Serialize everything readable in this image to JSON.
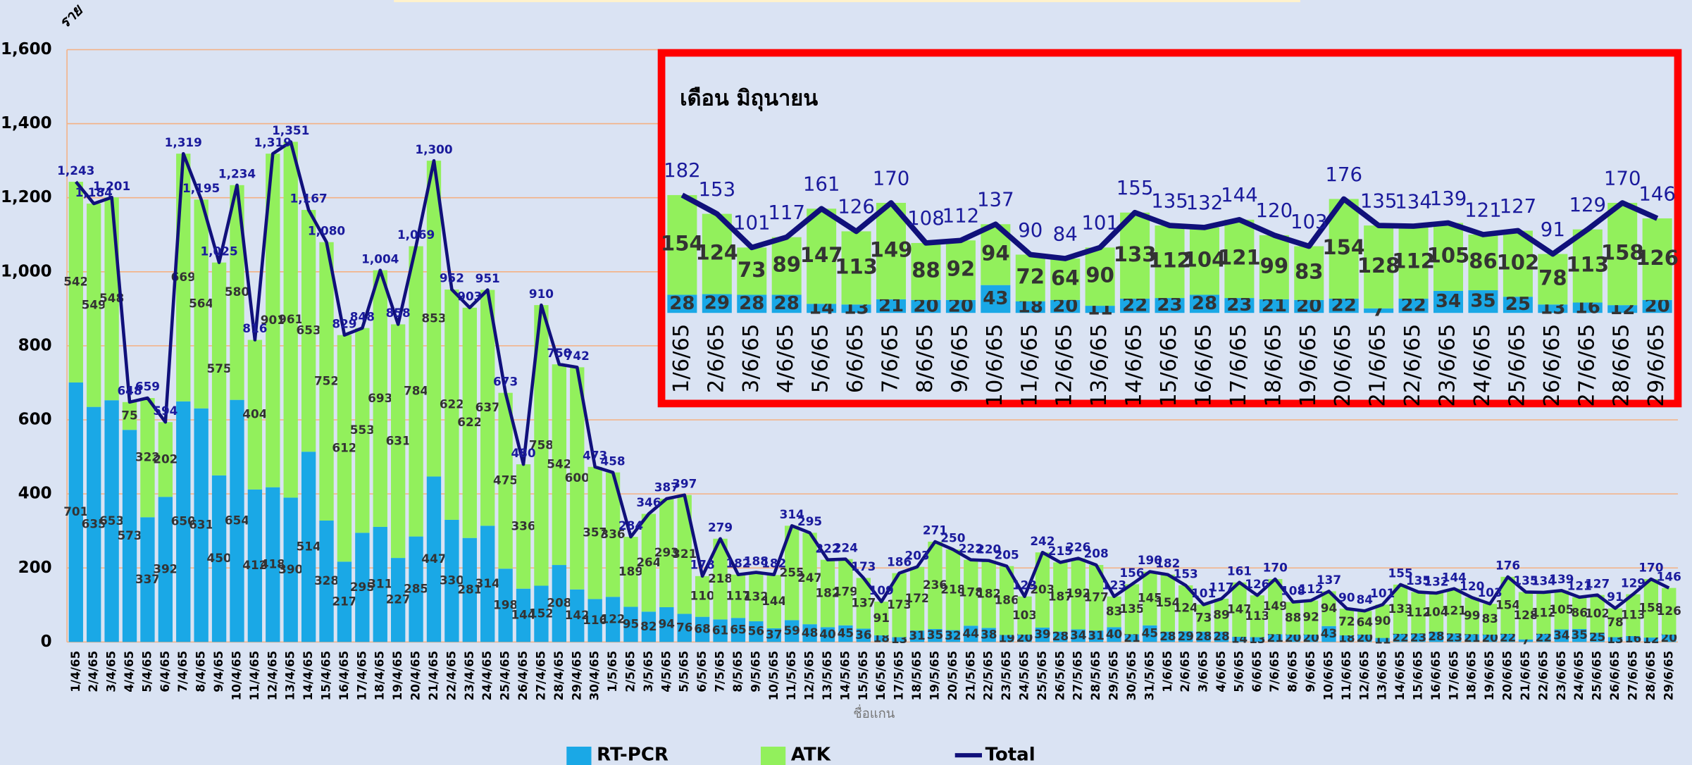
{
  "chart_data": [
    {
      "type": "bar",
      "stacked": true,
      "y_axis_label": "ราย",
      "x_axis_label": "ชื่อแกน",
      "categories": [
        "1/4/65",
        "2/4/65",
        "3/4/65",
        "4/4/65",
        "5/4/65",
        "6/4/65",
        "7/4/65",
        "8/4/65",
        "9/4/65",
        "10/4/65",
        "11/4/65",
        "12/4/65",
        "13/4/65",
        "14/4/65",
        "15/4/65",
        "16/4/65",
        "17/4/65",
        "18/4/65",
        "19/4/65",
        "20/4/65",
        "21/4/65",
        "22/4/65",
        "23/4/65",
        "24/4/65",
        "25/4/65",
        "26/4/65",
        "27/4/65",
        "28/4/65",
        "29/4/65",
        "30/4/65",
        "1/5/65",
        "2/5/65",
        "3/5/65",
        "4/5/65",
        "5/5/65",
        "6/5/65",
        "7/5/65",
        "8/5/65",
        "9/5/65",
        "10/5/65",
        "11/5/65",
        "12/5/65",
        "13/5/65",
        "14/5/65",
        "15/5/65",
        "16/5/65",
        "17/5/65",
        "18/5/65",
        "19/5/65",
        "20/5/65",
        "21/5/65",
        "22/5/65",
        "23/5/65",
        "24/5/65",
        "25/5/65",
        "26/5/65",
        "27/5/65",
        "28/5/65",
        "29/5/65",
        "30/5/65",
        "31/5/65",
        "1/6/65",
        "2/6/65",
        "3/6/65",
        "4/6/65",
        "5/6/65",
        "6/6/65",
        "7/6/65",
        "8/6/65",
        "9/6/65",
        "10/6/65",
        "11/6/65",
        "12/6/65",
        "13/6/65",
        "14/6/65",
        "15/6/65",
        "16/6/65",
        "17/6/65",
        "18/6/65",
        "19/6/65",
        "20/6/65",
        "21/6/65",
        "22/6/65",
        "23/6/65",
        "24/6/65",
        "25/6/65",
        "26/6/65",
        "27/6/65",
        "28/6/65",
        "29/6/65"
      ],
      "series": [
        {
          "name": "RT-PCR",
          "color": "#1aa8e6",
          "values": [
            701,
            635,
            653,
            573,
            337,
            392,
            650,
            631,
            450,
            654,
            412,
            418,
            390,
            514,
            328,
            217,
            295,
            311,
            227,
            285,
            447,
            330,
            281,
            314,
            198,
            144,
            152,
            208,
            142,
            116,
            122,
            95,
            82,
            94,
            76,
            68,
            61,
            65,
            56,
            37,
            59,
            48,
            40,
            45,
            36,
            18,
            13,
            31,
            35,
            32,
            44,
            38,
            19,
            20,
            39,
            28,
            34,
            31,
            40,
            21,
            45,
            28,
            29,
            28,
            28,
            14,
            13,
            21,
            20,
            20,
            43,
            18,
            20,
            11,
            22,
            23,
            28,
            23,
            21,
            20,
            22,
            7,
            22,
            34,
            35,
            25,
            13,
            16,
            12,
            20
          ]
        },
        {
          "name": "ATK",
          "color": "#92f05c",
          "values": [
            542,
            549,
            548,
            75,
            322,
            202,
            669,
            564,
            575,
            580,
            404,
            901,
            961,
            653,
            752,
            612,
            553,
            693,
            631,
            784,
            853,
            622,
            622,
            637,
            475,
            336,
            758,
            542,
            600,
            357,
            336,
            189,
            264,
            293,
            321,
            110,
            218,
            117,
            132,
            144,
            255,
            247,
            182,
            179,
            137,
            91,
            173,
            172,
            236,
            218,
            178,
            182,
            186,
            103,
            203,
            187,
            192,
            177,
            83,
            135,
            145,
            154,
            124,
            73,
            89,
            147,
            113,
            149,
            88,
            92,
            94,
            72,
            64,
            90,
            133,
            112,
            104,
            121,
            99,
            83,
            154,
            128,
            112,
            105,
            86,
            102,
            78,
            113,
            158,
            126
          ]
        },
        {
          "name": "Total",
          "type": "line",
          "color": "#10107a",
          "values": [
            1243,
            1184,
            1201,
            648,
            659,
            594,
            1319,
            1195,
            1025,
            1234,
            816,
            1319,
            1351,
            1167,
            1080,
            829,
            848,
            1004,
            858,
            1069,
            1300,
            952,
            903,
            951,
            673,
            480,
            910,
            750,
            742,
            473,
            458,
            284,
            346,
            387,
            397,
            178,
            279,
            182,
            188,
            182,
            314,
            295,
            222,
            224,
            173,
            109,
            186,
            203,
            271,
            250,
            222,
            220,
            205,
            123,
            242,
            215,
            226,
            208,
            123,
            156,
            190,
            182,
            153,
            101,
            117,
            161,
            126,
            170,
            108,
            112,
            137,
            90,
            84,
            101,
            155,
            135,
            132,
            144,
            120,
            103,
            176,
            135,
            134,
            139,
            121,
            127,
            91,
            129,
            170,
            146
          ],
          "value_labels": [
            "1,243",
            "1,184",
            "1,201",
            "648",
            "659",
            "594",
            "1,319",
            "1,195",
            "1,025",
            "1,234",
            "816",
            "1,319",
            "1,351",
            "1,167",
            "1,080",
            "829",
            "848",
            "1,004",
            "858",
            "1,069",
            "1,300",
            "952",
            "903",
            "951",
            "673",
            "480",
            "910",
            "750",
            "742",
            "473",
            "458",
            "284",
            "346",
            "387",
            "397",
            "178",
            "279",
            "182",
            "188",
            "182",
            "314",
            "295",
            "222",
            "224",
            "173",
            "109",
            "186",
            "203",
            "271",
            "250",
            "222",
            "220",
            "205",
            "123",
            "242",
            "215",
            "226",
            "208",
            "123",
            "156",
            "190",
            "182",
            "153",
            "101",
            "117",
            "161",
            "126",
            "170",
            "108",
            "112",
            "137",
            "90",
            "84",
            "101",
            "155",
            "135",
            "132",
            "144",
            "120",
            "103",
            "176",
            "135",
            "134",
            "139",
            "121",
            "127",
            "91",
            "129",
            "170",
            "146"
          ]
        }
      ],
      "ylim": [
        0,
        1600
      ],
      "yticks": [
        0,
        200,
        400,
        600,
        800,
        {
          "value": 1000,
          "label": "1,000"
        },
        {
          "value": 1200,
          "label": "1,200"
        },
        {
          "value": 1400,
          "label": "1,400"
        },
        {
          "value": 1600,
          "label": "1,600"
        }
      ],
      "grid": true,
      "legend": "bottom"
    },
    {
      "type": "bar",
      "stacked": true,
      "title": "เดือน มิถุนายน",
      "categories": [
        "1/6/65",
        "2/6/65",
        "3/6/65",
        "4/6/65",
        "5/6/65",
        "6/6/65",
        "7/6/65",
        "8/6/65",
        "9/6/65",
        "10/6/65",
        "11/6/65",
        "12/6/65",
        "13/6/65",
        "14/6/65",
        "15/6/65",
        "16/6/65",
        "17/6/65",
        "18/6/65",
        "19/6/65",
        "20/6/65",
        "21/6/65",
        "22/6/65",
        "23/6/65",
        "24/6/65",
        "25/6/65",
        "26/6/65",
        "27/6/65",
        "28/6/65",
        "29/6/65"
      ],
      "series": [
        {
          "color": "#1aa8e6",
          "values": [
            28,
            29,
            28,
            28,
            14,
            13,
            21,
            20,
            20,
            43,
            18,
            20,
            11,
            22,
            23,
            28,
            23,
            21,
            20,
            22,
            7,
            22,
            34,
            35,
            25,
            13,
            16,
            12,
            20
          ]
        },
        {
          "color": "#92f05c",
          "values": [
            154,
            124,
            73,
            89,
            147,
            113,
            149,
            88,
            92,
            94,
            72,
            64,
            90,
            133,
            112,
            104,
            121,
            99,
            83,
            154,
            128,
            112,
            105,
            86,
            102,
            78,
            113,
            158,
            126
          ]
        },
        {
          "type": "line",
          "color": "#10107a",
          "values": [
            182,
            153,
            101,
            117,
            161,
            126,
            170,
            108,
            112,
            137,
            90,
            84,
            101,
            155,
            135,
            132,
            144,
            120,
            103,
            176,
            135,
            134,
            139,
            121,
            127,
            91,
            129,
            170,
            146
          ]
        }
      ],
      "ylim": [
        0,
        200
      ]
    }
  ]
}
